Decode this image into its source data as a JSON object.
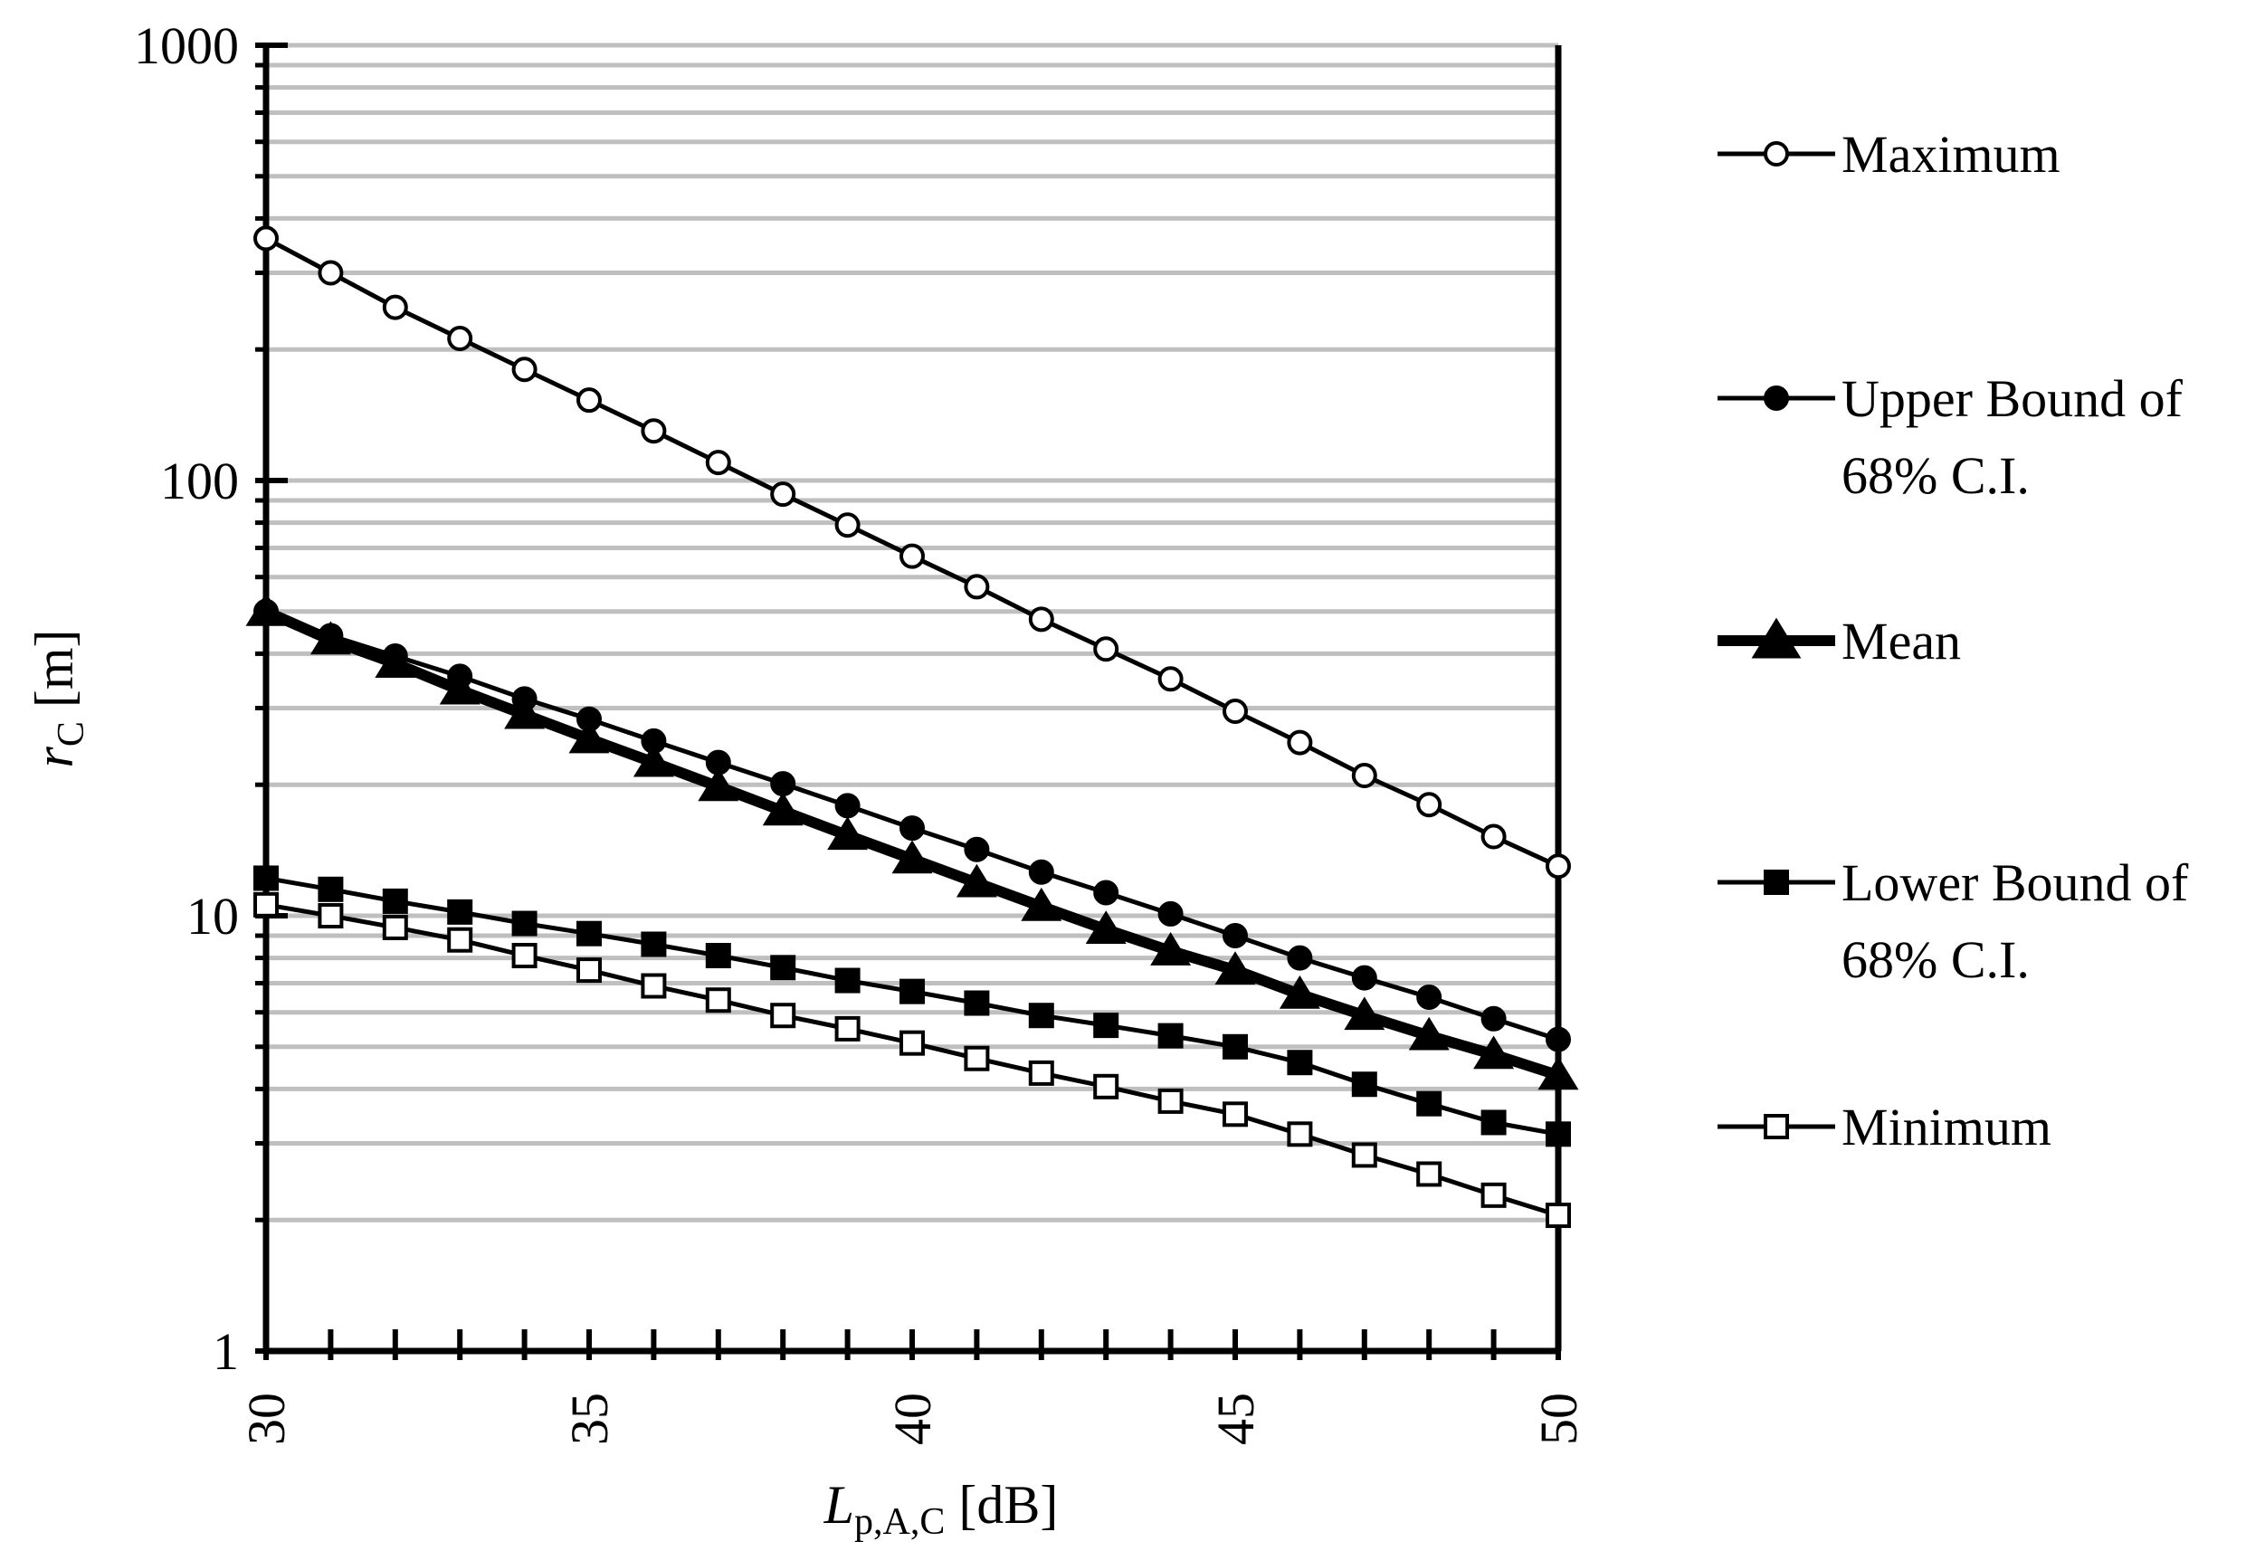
{
  "chart_data": {
    "type": "line",
    "xlabel": {
      "main": "L",
      "sub": "p,A,C",
      "unit": " [dB]"
    },
    "ylabel": {
      "main": "r",
      "sub": "C",
      "unit": " [m]"
    },
    "xlim": [
      30,
      50
    ],
    "ylim": [
      1,
      1000
    ],
    "yscale": "log",
    "grid": "horizontal minor and major gridlines",
    "legend_position": "right",
    "x_ticks": [
      30,
      35,
      40,
      45,
      50
    ],
    "y_ticks": [
      1,
      10,
      100,
      1000
    ],
    "x_tick_labels": [
      "30",
      "35",
      "40",
      "45",
      "50"
    ],
    "y_tick_labels": [
      "1",
      "10",
      "100",
      "1000"
    ],
    "x": [
      30,
      31,
      32,
      33,
      34,
      35,
      36,
      37,
      38,
      39,
      40,
      41,
      42,
      43,
      44,
      45,
      46,
      47,
      48,
      49,
      50
    ],
    "series": [
      {
        "name": [
          "Maximum"
        ],
        "marker": "open-circle",
        "line_weight": "thin",
        "values": [
          360,
          300,
          250,
          212,
          180,
          153,
          130,
          110,
          93,
          79,
          67,
          57,
          48,
          41,
          35,
          29.5,
          25,
          21,
          18,
          15.2,
          13
        ]
      },
      {
        "name": [
          "Upper Bound of",
          "68% C.I."
        ],
        "marker": "filled-circle",
        "line_weight": "thin",
        "values": [
          50,
          44,
          39.5,
          35.5,
          31.5,
          28.3,
          25.2,
          22.5,
          20.1,
          17.9,
          15.9,
          14.2,
          12.6,
          11.3,
          10.1,
          9.0,
          8.0,
          7.2,
          6.5,
          5.8,
          5.2
        ]
      },
      {
        "name": [
          "Mean"
        ],
        "marker": "filled-triangle",
        "line_weight": "thick",
        "values": [
          50,
          43,
          38,
          33,
          29,
          25.5,
          22.5,
          19.8,
          17.4,
          15.3,
          13.5,
          11.9,
          10.5,
          9.3,
          8.3,
          7.5,
          6.6,
          5.9,
          5.3,
          4.8,
          4.3
        ]
      },
      {
        "name": [
          "Lower Bound of",
          "68% C.I."
        ],
        "marker": "filled-square",
        "line_weight": "thin",
        "values": [
          12.2,
          11.5,
          10.8,
          10.2,
          9.6,
          9.1,
          8.6,
          8.1,
          7.6,
          7.1,
          6.7,
          6.3,
          5.9,
          5.6,
          5.3,
          5.0,
          4.6,
          4.1,
          3.7,
          3.35,
          3.15
        ]
      },
      {
        "name": [
          "Minimum"
        ],
        "marker": "open-square",
        "line_weight": "thin",
        "values": [
          10.6,
          10.0,
          9.4,
          8.8,
          8.1,
          7.5,
          6.9,
          6.4,
          5.9,
          5.5,
          5.1,
          4.7,
          4.35,
          4.05,
          3.75,
          3.5,
          3.15,
          2.82,
          2.55,
          2.28,
          2.05
        ]
      }
    ]
  },
  "colors": {
    "axis": "#000000",
    "grid": "#bfbfbf",
    "line": "#000000",
    "marker_fill_open": "#ffffff",
    "marker_fill_solid": "#000000"
  }
}
